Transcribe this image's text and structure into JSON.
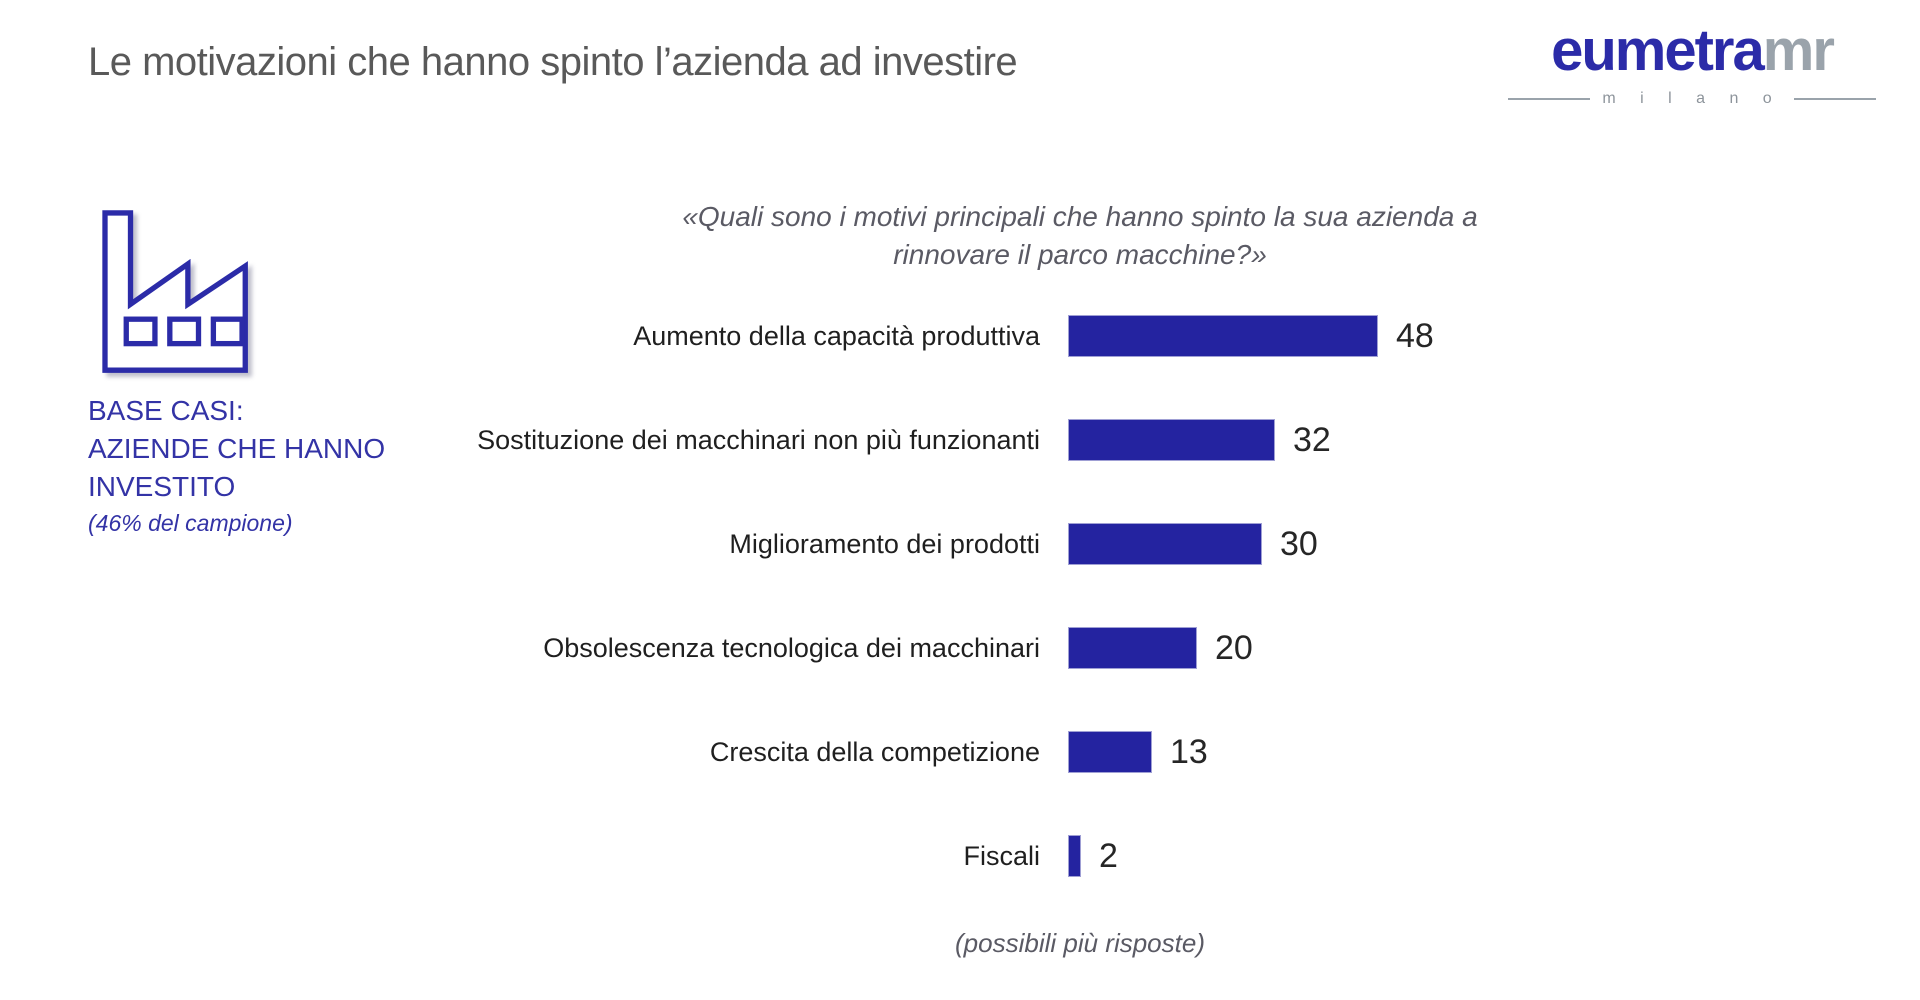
{
  "slide": {
    "title": "Le motivazioni che hanno spinto l’azienda ad investire",
    "footnote": "(possibili più risposte)"
  },
  "logo": {
    "name_primary": "eumetra",
    "name_secondary": "mr",
    "city": "m i l a n o",
    "primary_color": "#2b2ba8",
    "secondary_color": "#9aa3ab"
  },
  "base_block": {
    "line1": "BASE CASI:",
    "line2": "AZIENDE CHE HANNO",
    "line3": "INVESTITO",
    "note": "(46% del campione)",
    "text_color": "#3333a6"
  },
  "question": {
    "line1": "«Quali sono i motivi principali che hanno spinto la sua azienda a",
    "line2": "rinnovare il parco macchine?»"
  },
  "chart_data": {
    "type": "bar",
    "orientation": "horizontal",
    "categories": [
      "Aumento della capacità produttiva",
      "Sostituzione dei macchinari non più funzionanti",
      "Miglioramento dei prodotti",
      "Obsolescenza tecnologica dei macchinari",
      "Crescita della competizione",
      "Fiscali"
    ],
    "values": [
      48,
      32,
      30,
      20,
      13,
      2
    ],
    "axis_max": 48,
    "bar_color": "#2423a0",
    "value_labels_shown": true,
    "grid": false,
    "legend": false,
    "title": "Le motivazioni che hanno spinto l’azienda ad investire",
    "xlabel": "",
    "ylabel": "",
    "note": "(possibili più risposte)"
  }
}
